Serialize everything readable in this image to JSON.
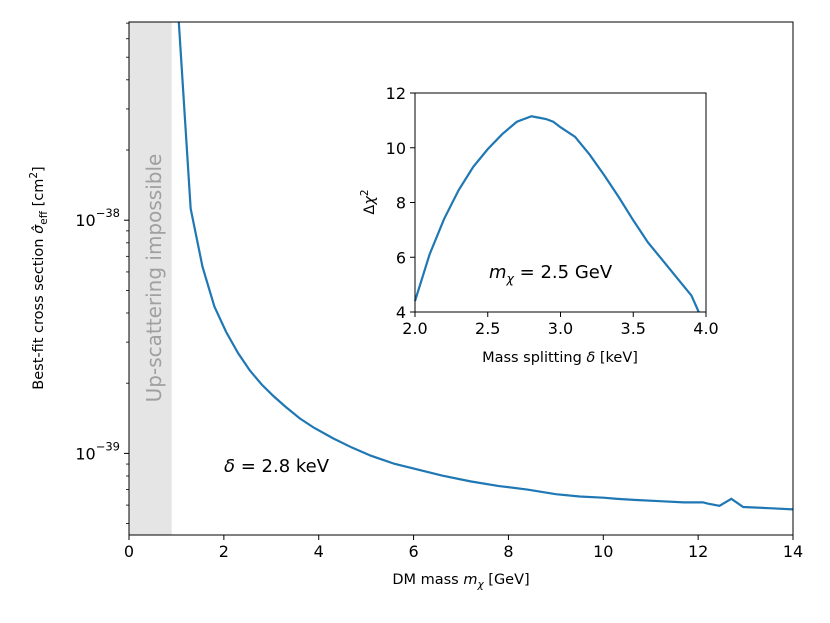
{
  "chart_data": [
    {
      "type": "line",
      "xlabel_text": "DM mass ",
      "xlabel_sym": "m",
      "xlabel_sub": "χ",
      "xlabel_unit": " [GeV]",
      "ylabel_text": "Best-fit cross section ",
      "ylabel_sym": "σ̂",
      "ylabel_sub": "eff",
      "ylabel_unit": " [cm",
      "ylabel_sup": "2",
      "ylabel_close": "]",
      "xlim": [
        0,
        14
      ],
      "ylim_log10": [
        -39.35,
        -37.15
      ],
      "xticks": [
        0,
        2,
        4,
        6,
        8,
        10,
        12,
        14
      ],
      "xtick_labels": [
        "0",
        "2",
        "4",
        "6",
        "8",
        "10",
        "12",
        "14"
      ],
      "ytick_major_exp": [
        -39,
        -38
      ],
      "ytick_base": "10",
      "ytick_exp_labels": [
        "−39",
        "−38"
      ],
      "shaded_region": {
        "x": [
          0,
          0.9
        ],
        "color": "#e5e5e5",
        "label": "Up-scattering impossible"
      },
      "annotation": {
        "sym": "δ",
        "eq": " = 2.8 keV"
      },
      "line_color": "#1f77b4",
      "series": [
        {
          "name": "best-fit",
          "x": [
            1.05,
            1.3,
            1.55,
            1.8,
            2.05,
            2.3,
            2.55,
            2.8,
            3.05,
            3.3,
            3.6,
            3.9,
            4.3,
            4.7,
            5.1,
            5.6,
            6.1,
            6.6,
            7.2,
            7.8,
            8.4,
            9.0,
            9.5,
            10.0,
            10.3,
            10.7,
            11.2,
            11.7,
            12.1,
            12.2,
            12.45,
            12.7,
            12.95,
            13.5,
            14.0
          ],
          "log10_y": [
            -37.15,
            -37.95,
            -38.2,
            -38.37,
            -38.48,
            -38.57,
            -38.645,
            -38.705,
            -38.755,
            -38.8,
            -38.85,
            -38.89,
            -38.935,
            -38.975,
            -39.01,
            -39.045,
            -39.07,
            -39.095,
            -39.12,
            -39.14,
            -39.155,
            -39.175,
            -39.185,
            -39.19,
            -39.195,
            -39.2,
            -39.205,
            -39.21,
            -39.21,
            -39.215,
            -39.225,
            -39.195,
            -39.23,
            -39.235,
            -39.24
          ]
        }
      ]
    },
    {
      "type": "line",
      "inset": true,
      "xlabel_text": "Mass splitting ",
      "xlabel_sym": "δ",
      "xlabel_unit": " [keV]",
      "ylabel_pre": "Δ",
      "ylabel_sym": "χ",
      "ylabel_sup": "2",
      "xlim": [
        2.0,
        4.0
      ],
      "ylim": [
        4,
        12
      ],
      "xticks": [
        2.0,
        2.5,
        3.0,
        3.5,
        4.0
      ],
      "xtick_labels": [
        "2.0",
        "2.5",
        "3.0",
        "3.5",
        "4.0"
      ],
      "yticks": [
        4,
        6,
        8,
        10,
        12
      ],
      "ytick_labels": [
        "4",
        "6",
        "8",
        "10",
        "12"
      ],
      "annotation": {
        "sym": "m",
        "sub": "χ",
        "eq": " = 2.5 GeV"
      },
      "line_color": "#1f77b4",
      "series": [
        {
          "name": "delta-chi2",
          "x": [
            2.0,
            2.1,
            2.2,
            2.3,
            2.4,
            2.5,
            2.6,
            2.7,
            2.75,
            2.8,
            2.85,
            2.9,
            2.95,
            3.0,
            3.1,
            3.2,
            3.3,
            3.4,
            3.5,
            3.6,
            3.7,
            3.8,
            3.9,
            3.95
          ],
          "y": [
            4.4,
            6.1,
            7.4,
            8.45,
            9.3,
            9.95,
            10.5,
            10.95,
            11.05,
            11.15,
            11.1,
            11.05,
            10.95,
            10.75,
            10.4,
            9.75,
            9.0,
            8.2,
            7.35,
            6.55,
            5.9,
            5.25,
            4.6,
            4.0
          ]
        }
      ]
    }
  ]
}
